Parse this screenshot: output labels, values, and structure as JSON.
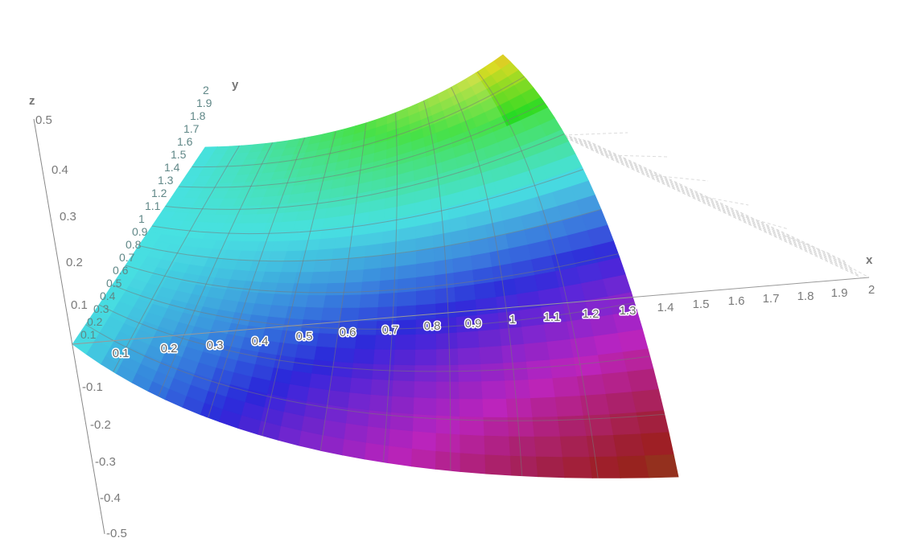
{
  "chart_data": {
    "type": "surface",
    "title": "",
    "xlabel": "x",
    "ylabel": "y",
    "zlabel": "z",
    "xlim": [
      0,
      2
    ],
    "ylim": [
      0,
      2
    ],
    "zlim": [
      -0.5,
      0.5
    ],
    "x_ticks": [
      "0.1",
      "0.2",
      "0.3",
      "0.4",
      "0.5",
      "0.6",
      "0.7",
      "0.8",
      "0.9",
      "1",
      "1.1",
      "1.2",
      "1.3",
      "1.4",
      "1.5",
      "1.6",
      "1.7",
      "1.8",
      "1.9",
      "2"
    ],
    "y_ticks": [
      "0.1",
      "0.2",
      "0.3",
      "0.4",
      "0.5",
      "0.6",
      "0.7",
      "0.8",
      "0.9",
      "1",
      "1.1",
      "1.2",
      "1.3",
      "1.4",
      "1.5",
      "1.6",
      "1.7",
      "1.8",
      "1.9",
      "2"
    ],
    "z_ticks": [
      "0.5",
      "0.4",
      "0.3",
      "0.2",
      "0.1",
      "-0.1",
      "-0.2",
      "-0.3",
      "-0.4",
      "-0.5"
    ],
    "colormap": "hue by height (cyan, blue, purple, brown, orange, yellow, green)",
    "mesh": true,
    "box_grid": true
  }
}
